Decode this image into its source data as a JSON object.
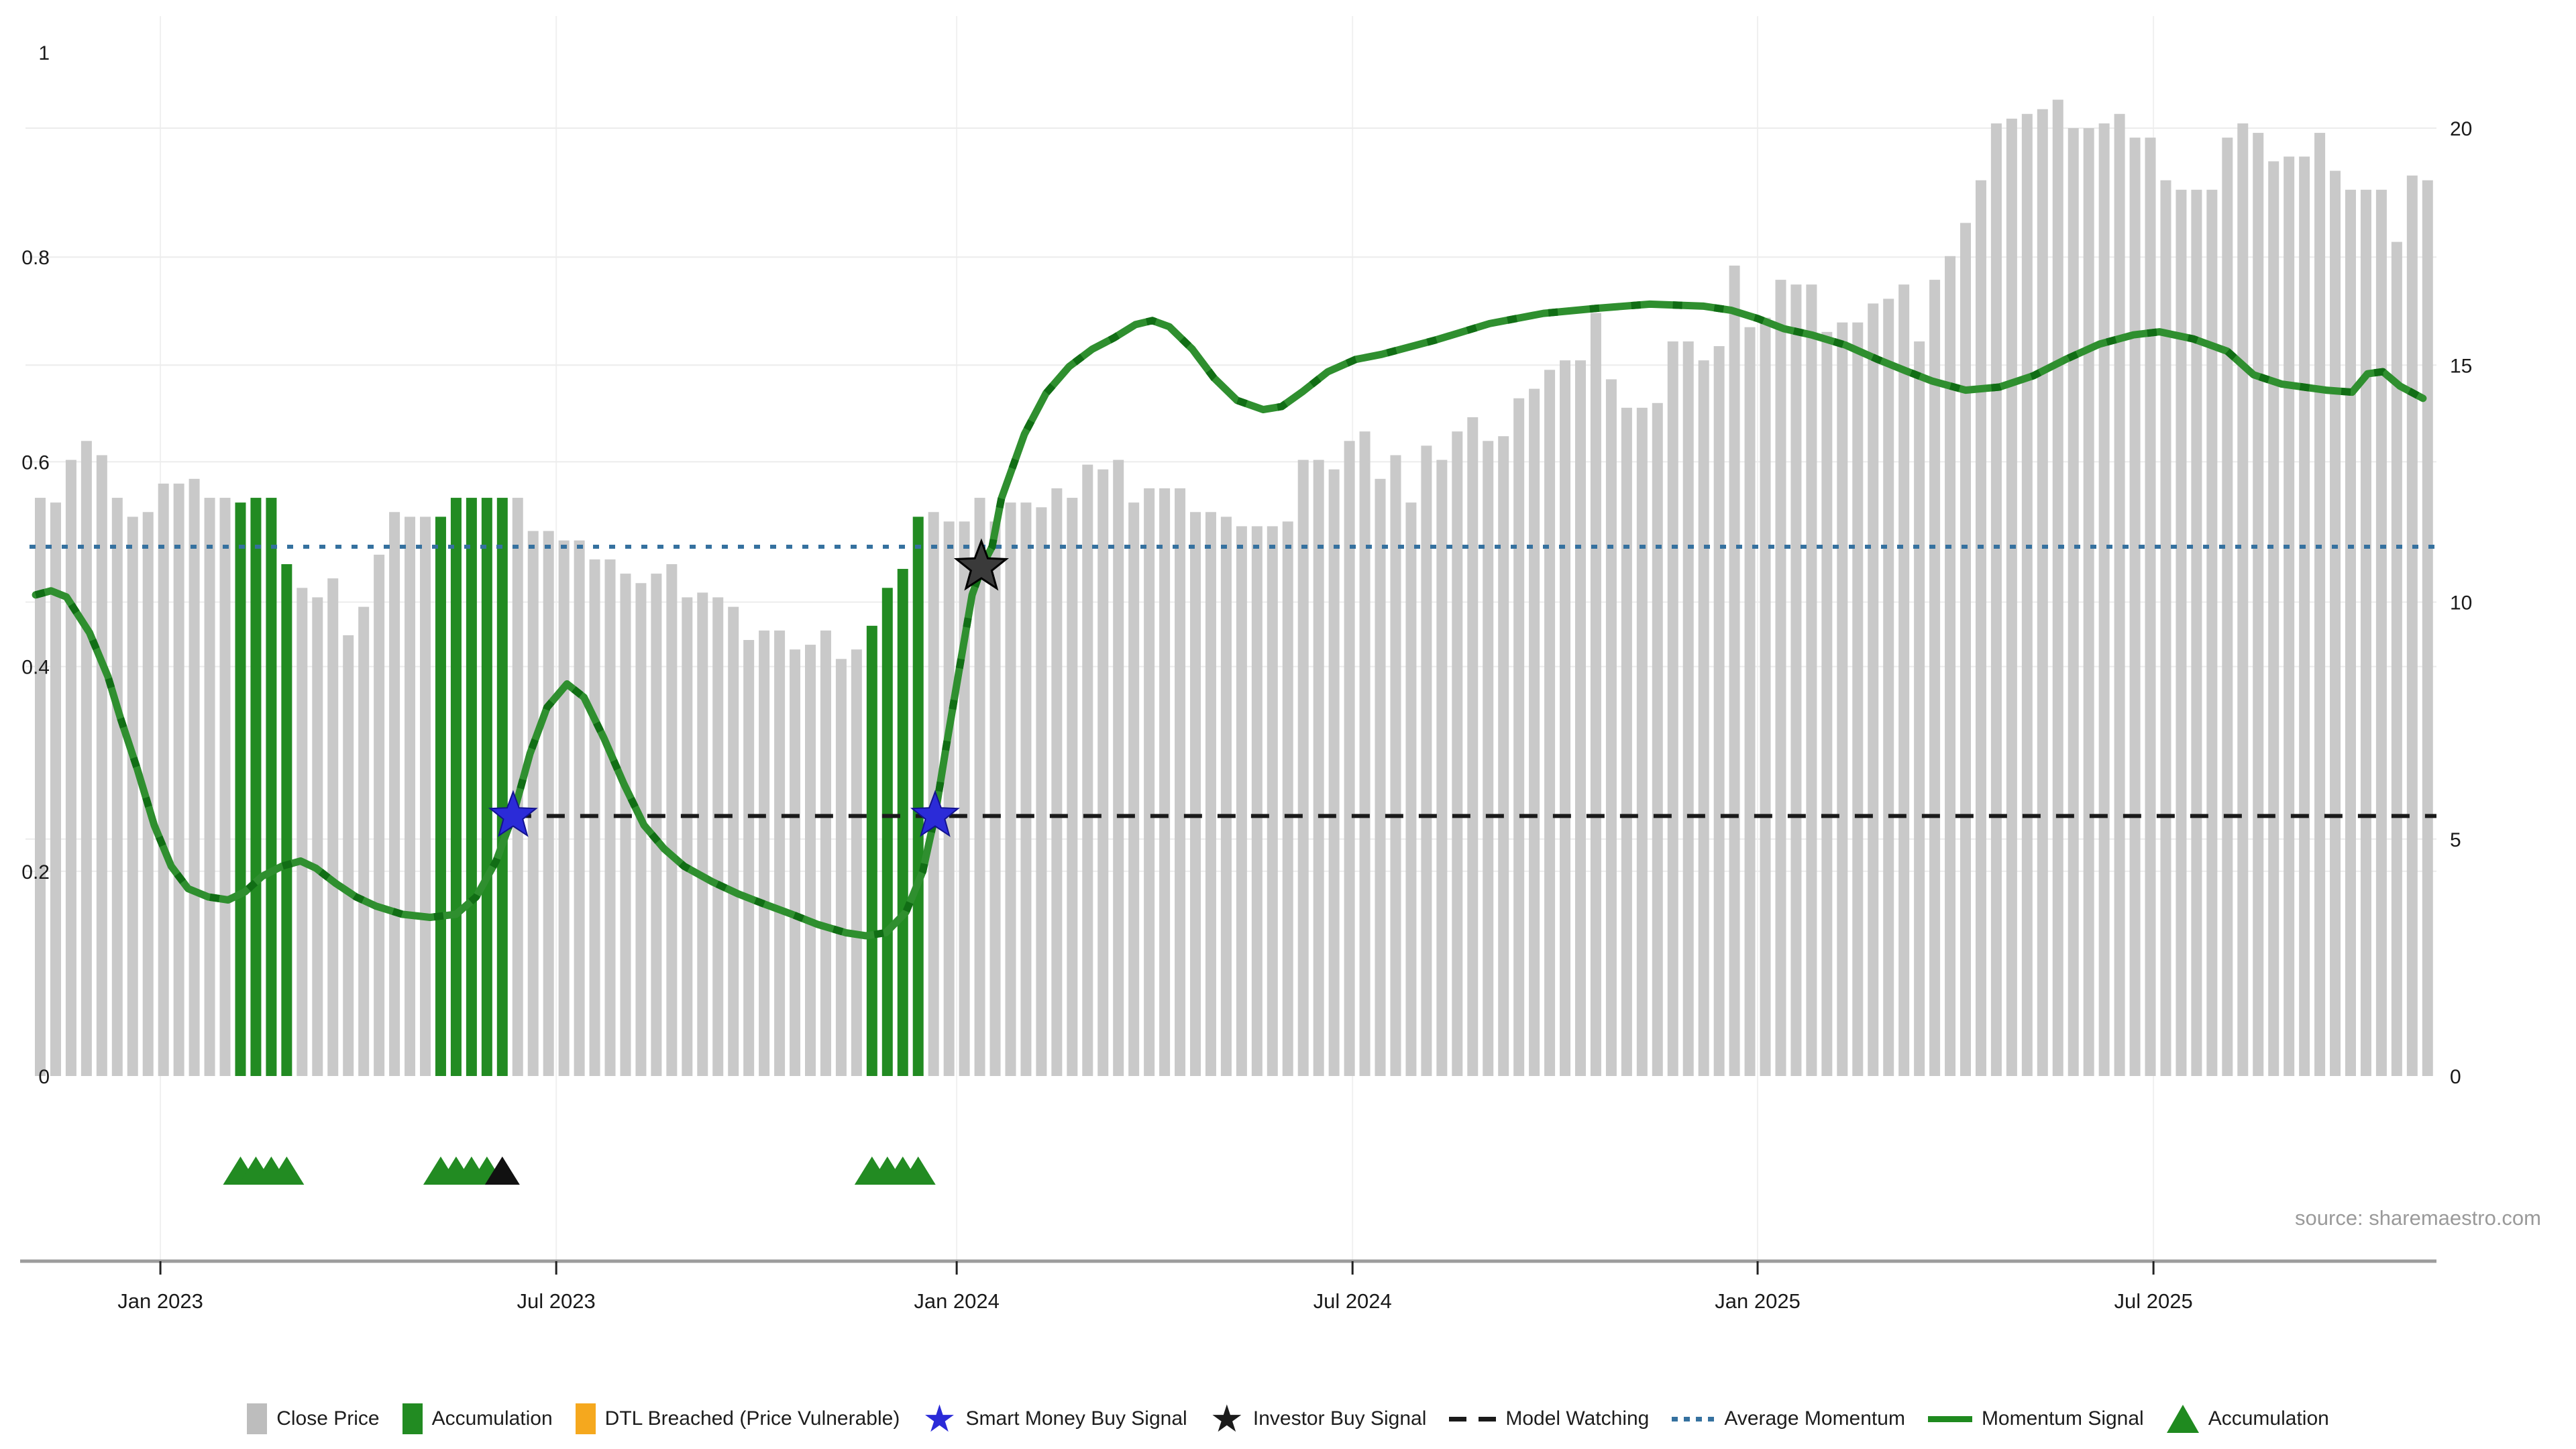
{
  "source_note": "source: sharemaestro.com",
  "colors": {
    "close_price_bar": "#c9c9c9",
    "accumulation_bar": "#228b22",
    "dtl_breached": "#f5a81e",
    "smart_money_star": "#2b2bd8",
    "investor_star": "#1b1b1b",
    "model_watching": "#1a1a1a",
    "average_momentum": "#35719f",
    "momentum_signal": "#2f8f2f",
    "momentum_signal_dash": "#116e15",
    "gridline": "#ececec",
    "axis_line": "#9c9c9c"
  },
  "legend": {
    "items": [
      {
        "label": "Close Price",
        "swatch": "bar",
        "color": "#bdbdbd"
      },
      {
        "label": "Accumulation",
        "swatch": "bar",
        "color": "#228b22"
      },
      {
        "label": "DTL Breached (Price Vulnerable)",
        "swatch": "bar",
        "color": "#f5a81e"
      },
      {
        "label": "Smart Money Buy Signal",
        "swatch": "star",
        "color": "#2b2bd8"
      },
      {
        "label": "Investor Buy Signal",
        "swatch": "star",
        "color": "#1b1b1b"
      },
      {
        "label": "Model Watching",
        "swatch": "dashes",
        "color": "#1a1a1a"
      },
      {
        "label": "Average Momentum",
        "swatch": "dots",
        "color": "#35719f"
      },
      {
        "label": "Momentum Signal",
        "swatch": "line",
        "color": "#1f8a1f"
      },
      {
        "label": "Accumulation",
        "swatch": "triangle",
        "color": "#1f8a1f"
      }
    ]
  },
  "chart_data": {
    "type": "mixed",
    "title": "",
    "x_axis": {
      "unit": "weekly bars (t = bar index)",
      "ticks": [
        {
          "label": "Jan 2023",
          "t": 7.8
        },
        {
          "label": "Jul 2023",
          "t": 33.5
        },
        {
          "label": "Jan 2024",
          "t": 59.5
        },
        {
          "label": "Jul 2024",
          "t": 85.2
        },
        {
          "label": "Jan 2025",
          "t": 111.5
        },
        {
          "label": "Jul 2025",
          "t": 137.2
        }
      ]
    },
    "left_axis": {
      "range": [
        0,
        1
      ],
      "ticks": [
        {
          "label": "1",
          "v": 1
        },
        {
          "label": "0.8",
          "v": 0.8
        },
        {
          "label": "0.6",
          "v": 0.6
        },
        {
          "label": "0.4",
          "v": 0.4
        },
        {
          "label": "0.2",
          "v": 0.2
        },
        {
          "label": "0",
          "v": 0
        }
      ],
      "gridlines": [
        0.2,
        0.4,
        0.6,
        0.8
      ]
    },
    "right_axis": {
      "range": [
        0,
        20
      ],
      "ticks": [
        {
          "label": "20",
          "v": 20
        },
        {
          "label": "15",
          "v": 15
        },
        {
          "label": "10",
          "v": 10
        },
        {
          "label": "5",
          "v": 5
        },
        {
          "label": "0",
          "v": 0
        }
      ],
      "gridlines": [
        5,
        10,
        15,
        20
      ]
    },
    "bars": {
      "name": "Close Price (right axis)",
      "values": [
        12.2,
        12.1,
        13.0,
        13.4,
        13.1,
        12.2,
        11.8,
        11.9,
        12.5,
        12.5,
        12.6,
        12.2,
        12.2,
        12.1,
        12.2,
        12.2,
        10.8,
        10.3,
        10.1,
        10.5,
        9.3,
        9.9,
        11.0,
        11.9,
        11.8,
        11.8,
        11.8,
        12.2,
        12.2,
        12.2,
        12.2,
        12.2,
        11.5,
        11.5,
        11.3,
        11.3,
        10.9,
        10.9,
        10.6,
        10.4,
        10.6,
        10.8,
        10.1,
        10.2,
        10.1,
        9.9,
        9.2,
        9.4,
        9.4,
        9.0,
        9.1,
        9.4,
        8.8,
        9.0,
        9.5,
        10.3,
        10.7,
        11.8,
        11.9,
        11.7,
        11.7,
        12.2,
        11.7,
        12.1,
        12.1,
        12.0,
        12.4,
        12.2,
        12.9,
        12.8,
        13.0,
        12.1,
        12.4,
        12.4,
        12.4,
        11.9,
        11.9,
        11.8,
        11.6,
        11.6,
        11.6,
        11.7,
        13.0,
        13.0,
        12.8,
        13.4,
        13.6,
        12.6,
        13.1,
        12.1,
        13.3,
        13.0,
        13.6,
        13.9,
        13.4,
        13.5,
        14.3,
        14.5,
        14.9,
        15.1,
        15.1,
        16.1,
        14.7,
        14.1,
        14.1,
        14.2,
        15.5,
        15.5,
        15.1,
        15.4,
        17.1,
        15.8,
        16.0,
        16.8,
        16.7,
        16.7,
        15.7,
        15.9,
        15.9,
        16.3,
        16.4,
        16.7,
        15.5,
        16.8,
        17.3,
        18.0,
        18.9,
        20.1,
        20.2,
        20.3,
        20.4,
        20.6,
        20.0,
        20.0,
        20.1,
        20.3,
        19.8,
        19.8,
        18.9,
        18.7,
        18.7,
        18.7,
        19.8,
        20.1,
        19.9,
        19.3,
        19.4,
        19.4,
        19.9,
        19.1,
        18.7,
        18.7,
        18.7,
        17.6,
        19.0,
        18.9
      ],
      "accumulation_indices": [
        13,
        14,
        15,
        16,
        26,
        27,
        28,
        29,
        30,
        54,
        55,
        56,
        57
      ]
    },
    "momentum_signal": {
      "name": "Momentum Signal (left axis)",
      "points": [
        [
          -0.3,
          0.47
        ],
        [
          0.7,
          0.474
        ],
        [
          1.7,
          0.468
        ],
        [
          3.2,
          0.433
        ],
        [
          4.4,
          0.39
        ],
        [
          5.2,
          0.35
        ],
        [
          6.3,
          0.3
        ],
        [
          7.4,
          0.245
        ],
        [
          8.5,
          0.205
        ],
        [
          9.6,
          0.183
        ],
        [
          10.9,
          0.175
        ],
        [
          12.2,
          0.172
        ],
        [
          13.3,
          0.18
        ],
        [
          14.4,
          0.195
        ],
        [
          15.7,
          0.205
        ],
        [
          16.9,
          0.21
        ],
        [
          17.9,
          0.203
        ],
        [
          19.2,
          0.188
        ],
        [
          20.5,
          0.175
        ],
        [
          21.8,
          0.166
        ],
        [
          23.5,
          0.158
        ],
        [
          25.3,
          0.155
        ],
        [
          27.0,
          0.158
        ],
        [
          28.3,
          0.175
        ],
        [
          29.6,
          0.21
        ],
        [
          30.7,
          0.255
        ],
        [
          31.8,
          0.315
        ],
        [
          32.9,
          0.36
        ],
        [
          34.2,
          0.383
        ],
        [
          35.3,
          0.37
        ],
        [
          36.6,
          0.33
        ],
        [
          37.9,
          0.285
        ],
        [
          39.2,
          0.245
        ],
        [
          40.5,
          0.222
        ],
        [
          41.8,
          0.205
        ],
        [
          43.6,
          0.19
        ],
        [
          45.3,
          0.178
        ],
        [
          47.0,
          0.168
        ],
        [
          48.8,
          0.158
        ],
        [
          50.5,
          0.148
        ],
        [
          52.3,
          0.14
        ],
        [
          53.6,
          0.137
        ],
        [
          54.9,
          0.14
        ],
        [
          56.2,
          0.16
        ],
        [
          57.3,
          0.2
        ],
        [
          58.1,
          0.255
        ],
        [
          58.8,
          0.32
        ],
        [
          59.7,
          0.4
        ],
        [
          60.5,
          0.47
        ],
        [
          61.2,
          0.5
        ],
        [
          61.8,
          0.517
        ],
        [
          62.4,
          0.564
        ],
        [
          63.9,
          0.627
        ],
        [
          65.3,
          0.667
        ],
        [
          66.8,
          0.693
        ],
        [
          68.3,
          0.71
        ],
        [
          69.7,
          0.721
        ],
        [
          71.1,
          0.734
        ],
        [
          72.2,
          0.738
        ],
        [
          73.3,
          0.732
        ],
        [
          74.8,
          0.71
        ],
        [
          76.2,
          0.682
        ],
        [
          77.7,
          0.66
        ],
        [
          79.4,
          0.651
        ],
        [
          80.6,
          0.654
        ],
        [
          82.0,
          0.669
        ],
        [
          83.6,
          0.688
        ],
        [
          85.4,
          0.7
        ],
        [
          87.1,
          0.705
        ],
        [
          90.6,
          0.719
        ],
        [
          94.1,
          0.735
        ],
        [
          97.6,
          0.745
        ],
        [
          101.1,
          0.75
        ],
        [
          104.5,
          0.754
        ],
        [
          108.0,
          0.752
        ],
        [
          109.8,
          0.748
        ],
        [
          111.5,
          0.74
        ],
        [
          113.2,
          0.73
        ],
        [
          115.0,
          0.724
        ],
        [
          117.2,
          0.714
        ],
        [
          119.3,
          0.7
        ],
        [
          121.1,
          0.689
        ],
        [
          122.8,
          0.679
        ],
        [
          125.0,
          0.67
        ],
        [
          127.2,
          0.673
        ],
        [
          129.4,
          0.684
        ],
        [
          131.5,
          0.7
        ],
        [
          133.7,
          0.715
        ],
        [
          135.9,
          0.724
        ],
        [
          137.6,
          0.727
        ],
        [
          139.8,
          0.72
        ],
        [
          142.0,
          0.708
        ],
        [
          143.7,
          0.685
        ],
        [
          145.5,
          0.676
        ],
        [
          148.4,
          0.67
        ],
        [
          150.1,
          0.668
        ],
        [
          151.1,
          0.686
        ],
        [
          152.1,
          0.688
        ],
        [
          153.2,
          0.674
        ],
        [
          154.2,
          0.666
        ],
        [
          154.7,
          0.662
        ]
      ]
    },
    "average_momentum": {
      "value": 0.517,
      "full_width": true
    },
    "model_watching": {
      "value": 0.254,
      "start_t": 30.7
    },
    "markers": {
      "smart_money_buy_signals": [
        {
          "t": 30.7,
          "v": 0.254
        },
        {
          "t": 58.1,
          "v": 0.254
        }
      ],
      "investor_buy_signals": [
        {
          "t": 61.1,
          "v": 0.497
        }
      ],
      "accumulation_triangles_green_t": [
        13,
        14,
        15,
        16,
        26,
        27,
        28,
        29,
        54,
        55,
        56,
        57
      ],
      "accumulation_triangles_black_t": [
        30
      ]
    }
  }
}
